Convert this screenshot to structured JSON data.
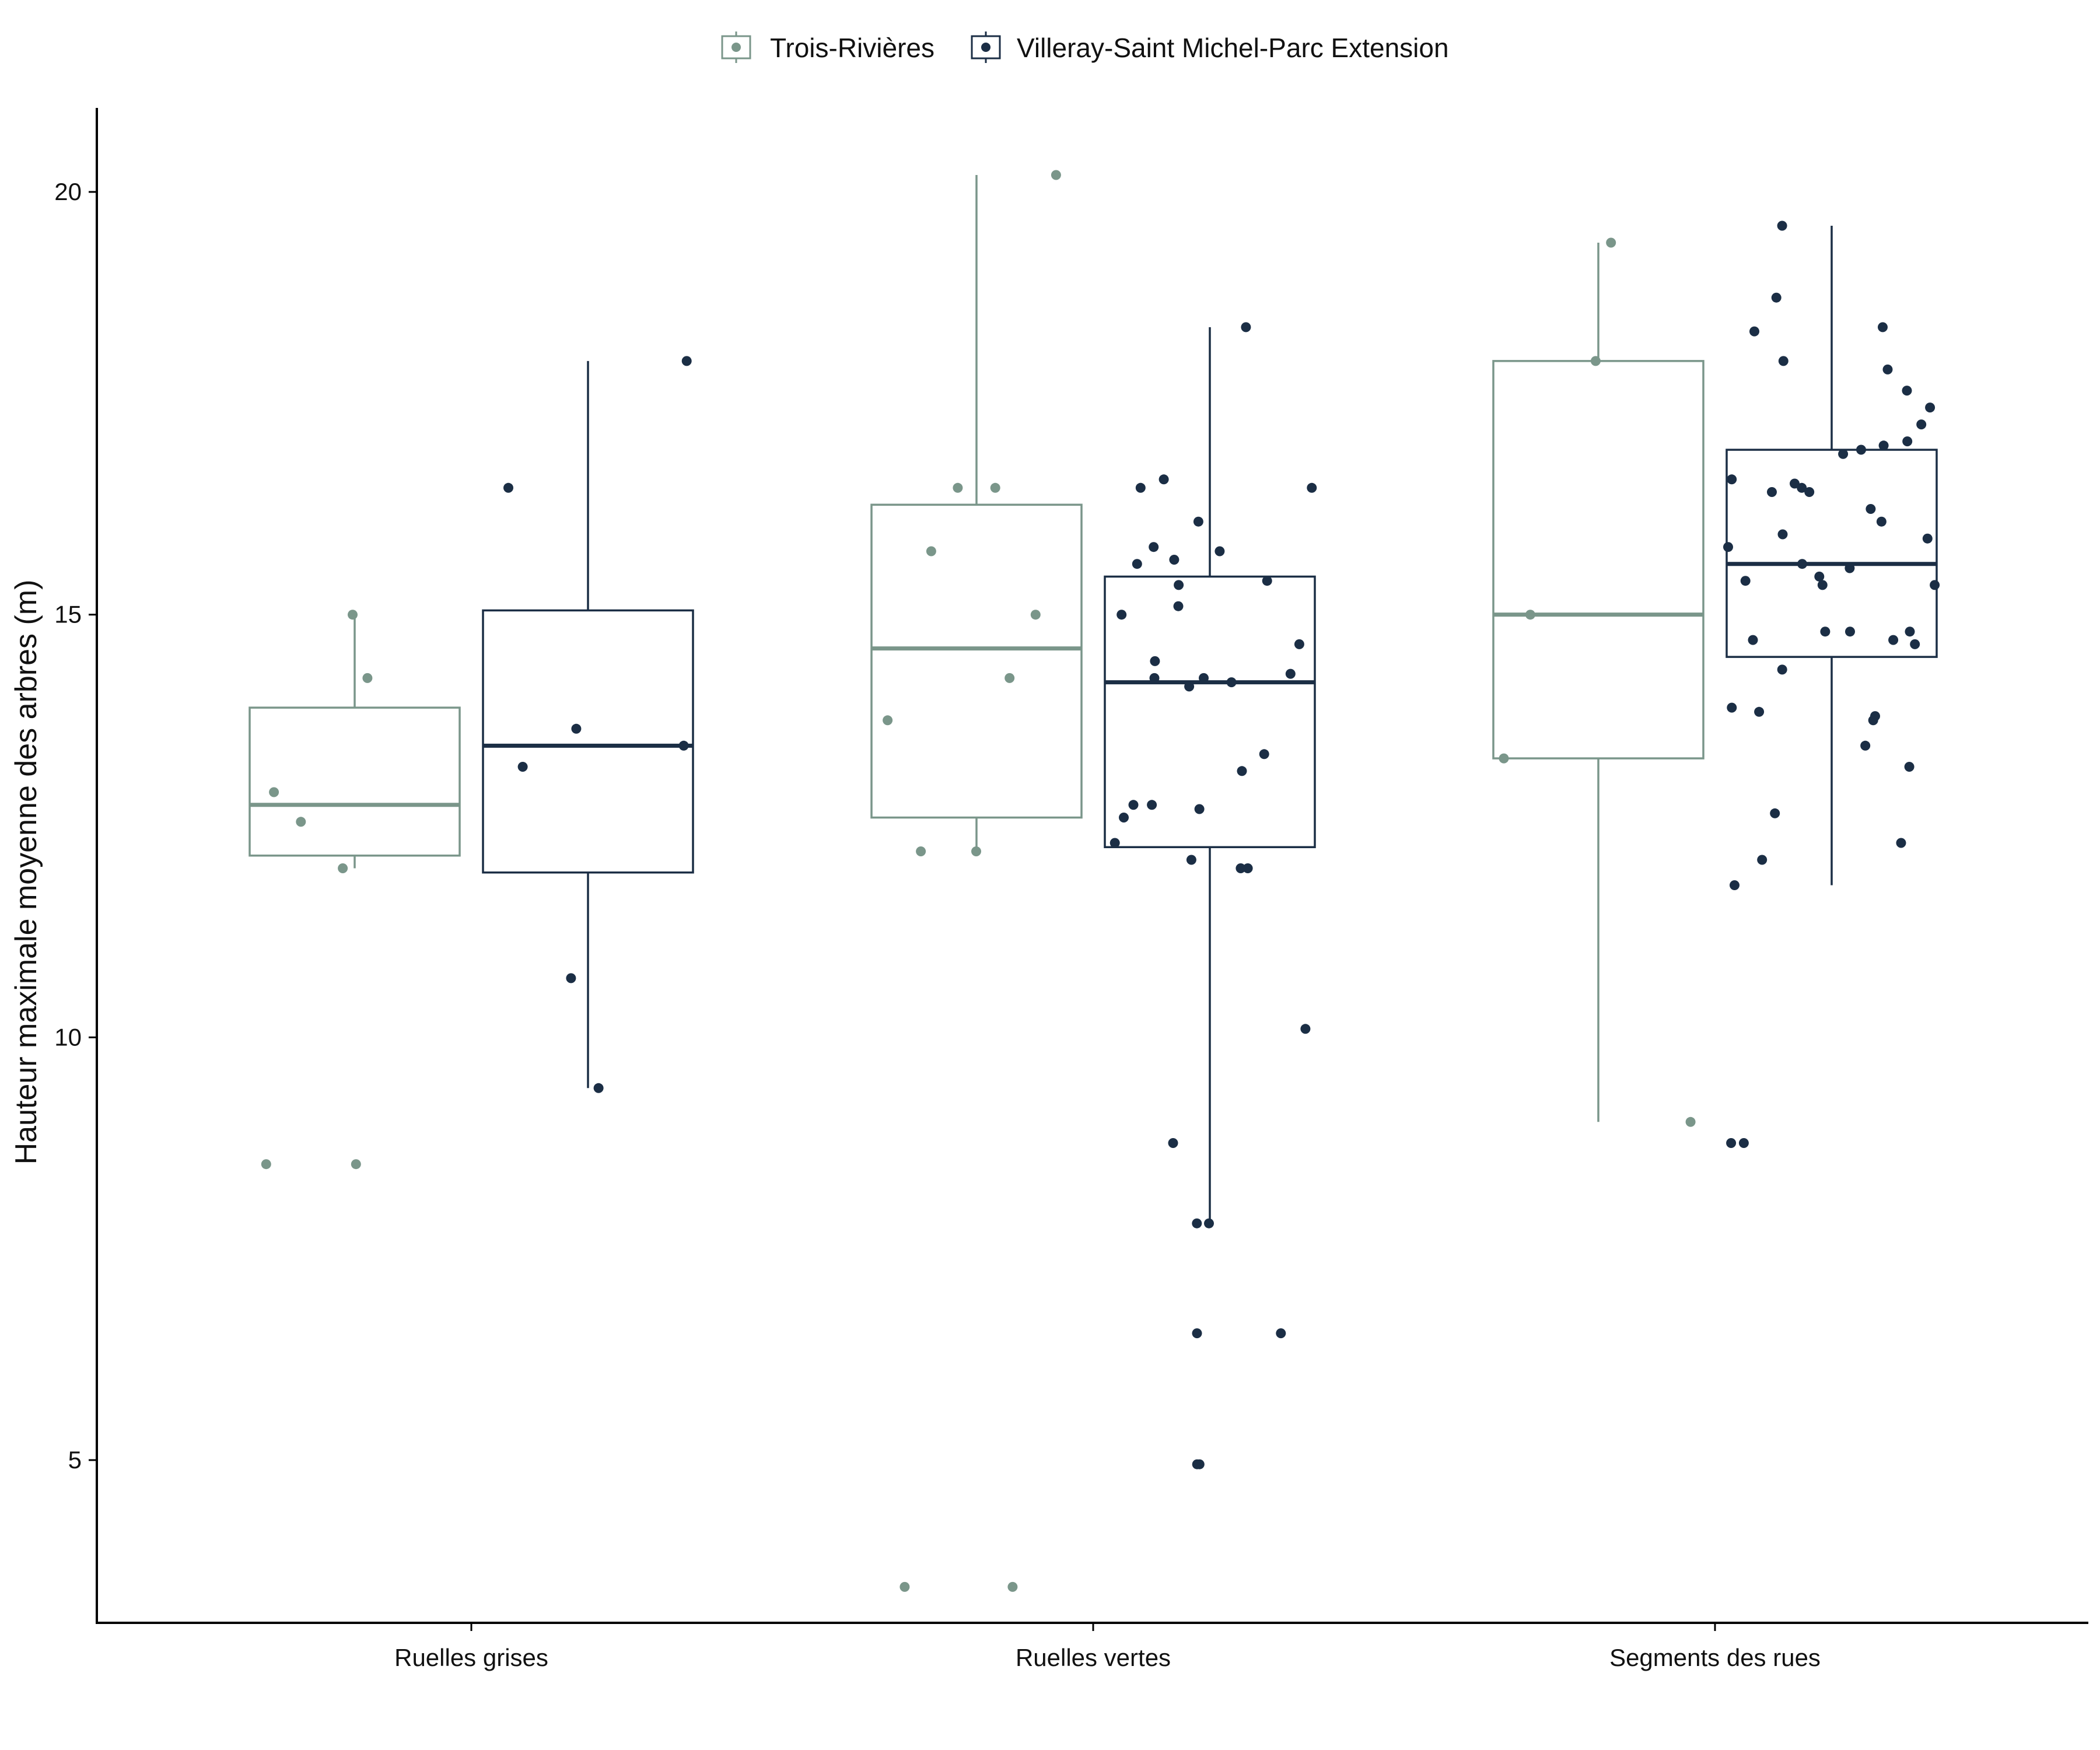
{
  "chart_data": {
    "type": "boxplot",
    "title": "",
    "ylabel": "Hauteur maximale moyenne des arbres (m)",
    "xlabel": "",
    "categories": [
      "Ruelles grises",
      "Ruelles vertes",
      "Segments des rues"
    ],
    "ylim": [
      2.1,
      21.0
    ],
    "yticks": [
      5,
      10,
      15,
      20
    ],
    "grid": false,
    "legend_position": "top",
    "series": [
      {
        "name": "Trois-Rivières",
        "color": "#7a968a",
        "boxes": [
          {
            "category": "Ruelles grises",
            "min": 12.0,
            "q1": 12.15,
            "median": 12.75,
            "q3": 13.9,
            "max": 15.0
          },
          {
            "category": "Ruelles vertes",
            "min": 12.2,
            "q1": 12.6,
            "median": 14.6,
            "q3": 16.3,
            "max": 20.2
          },
          {
            "category": "Segments des rues",
            "min": 9.0,
            "q1": 13.3,
            "median": 15.0,
            "q3": 18.0,
            "max": 19.4
          }
        ],
        "points": [
          {
            "category": "Ruelles grises",
            "y": [
              15.0,
              14.25,
              12.9,
              12.55,
              12.0,
              8.5,
              8.5
            ]
          },
          {
            "category": "Ruelles vertes",
            "y": [
              20.2,
              16.5,
              16.5,
              15.75,
              15.0,
              14.25,
              13.75,
              12.2,
              12.2,
              3.5,
              3.5
            ]
          },
          {
            "category": "Segments des rues",
            "y": [
              19.4,
              18.0,
              15.0,
              13.3,
              9.0
            ]
          }
        ]
      },
      {
        "name": "Villeray-Saint Michel-Parc Extension",
        "color": "#1b2e45",
        "boxes": [
          {
            "category": "Ruelles grises",
            "min": 9.4,
            "q1": 11.95,
            "median": 13.45,
            "q3": 15.05,
            "max": 18.0
          },
          {
            "category": "Ruelles vertes",
            "min": 7.8,
            "q1": 12.25,
            "median": 14.2,
            "q3": 15.45,
            "max": 18.4
          },
          {
            "category": "Segments des rues",
            "min": 11.8,
            "q1": 14.5,
            "median": 15.6,
            "q3": 16.95,
            "max": 19.6
          }
        ],
        "points": [
          {
            "category": "Ruelles grises",
            "y": [
              18.0,
              16.5,
              13.65,
              13.45,
              13.2,
              10.7,
              9.4
            ]
          },
          {
            "category": "Ruelles vertes",
            "y": [
              18.4,
              16.6,
              16.5,
              16.5,
              16.1,
              15.8,
              15.75,
              15.65,
              15.6,
              15.4,
              15.35,
              15.1,
              15.0,
              14.65,
              14.45,
              14.3,
              14.25,
              14.25,
              14.2,
              14.15,
              13.35,
              13.15,
              12.75,
              12.75,
              12.7,
              12.6,
              12.3,
              12.1,
              12.0,
              12.0,
              10.1,
              8.75,
              7.8,
              7.8,
              6.5,
              6.5,
              4.95,
              4.95
            ]
          },
          {
            "category": "Segments des rues",
            "y": [
              19.6,
              18.75,
              18.4,
              18.35,
              18.0,
              17.9,
              17.65,
              17.45,
              17.25,
              17.05,
              17.0,
              16.95,
              16.9,
              16.6,
              16.55,
              16.5,
              16.45,
              16.45,
              16.25,
              16.1,
              15.95,
              15.9,
              15.8,
              15.6,
              15.55,
              15.45,
              15.4,
              15.35,
              15.35,
              14.8,
              14.8,
              14.8,
              14.7,
              14.7,
              14.65,
              14.35,
              13.9,
              13.85,
              13.8,
              13.75,
              13.45,
              13.2,
              12.65,
              12.3,
              12.1,
              11.8,
              8.75,
              8.75
            ]
          }
        ]
      }
    ]
  }
}
